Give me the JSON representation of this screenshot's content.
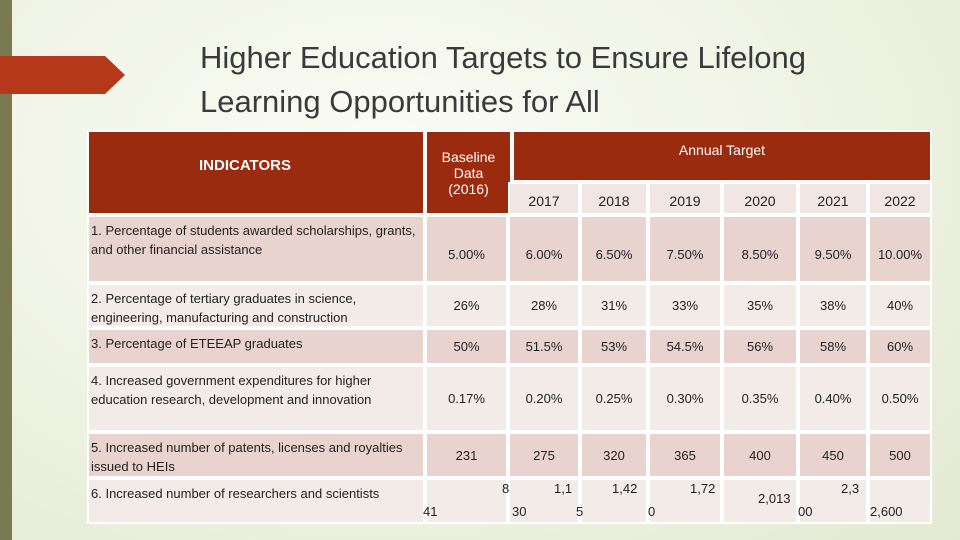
{
  "title": "Higher Education Targets to Ensure Lifelong Learning Opportunities for All",
  "table": {
    "headers": {
      "indicators": "INDICATORS",
      "baseline": "Baseline Data (2016)",
      "annual": "Annual Target",
      "years": [
        "2017",
        "2018",
        "2019",
        "2020",
        "2021",
        "2022"
      ]
    },
    "rows": [
      {
        "indicator": "1. Percentage of students awarded scholarships, grants, and other financial assistance",
        "cells": [
          "5.00%",
          "6.00%",
          "6.50%",
          "7.50%",
          "8.50%",
          "9.50%",
          "10.00%"
        ]
      },
      {
        "indicator": "2. Percentage of tertiary graduates in science, engineering, manufacturing and construction",
        "cells": [
          "26%",
          "28%",
          "31%",
          "33%",
          "35%",
          "38%",
          "40%"
        ]
      },
      {
        "indicator": "3. Percentage of ETEEAP graduates",
        "cells": [
          "50%",
          "51.5%",
          "53%",
          "54.5%",
          "56%",
          "58%",
          "60%"
        ]
      },
      {
        "indicator": "4. Increased government expenditures for higher education research, development and innovation",
        "cells": [
          "0.17%",
          "0.20%",
          "0.25%",
          "0.30%",
          "0.35%",
          "0.40%",
          "0.50%"
        ]
      },
      {
        "indicator": "5. Increased number of patents, licenses and royalties issued to HEIs",
        "cells": [
          "231",
          "275",
          "320",
          "365",
          "400",
          "450",
          "500"
        ]
      },
      {
        "indicator": "6. Increased number of researchers and scientists",
        "fragments": [
          "41",
          "8",
          "30",
          "1,1",
          "5",
          "1,42",
          "0",
          "1,72",
          "2,013",
          "00",
          "2,3",
          "2,600"
        ]
      }
    ]
  }
}
